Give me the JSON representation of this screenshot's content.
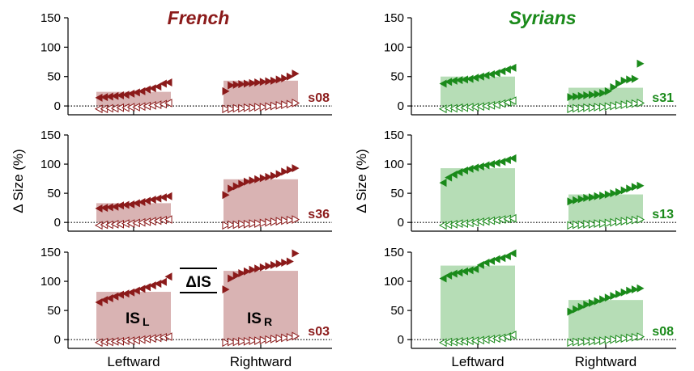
{
  "colors": {
    "french": "#8b1a1a",
    "french_bar": "#d9b3b3",
    "syrian": "#1a8a1a",
    "syrian_bar": "#b6ddb6",
    "axis": "#000000"
  },
  "chart_data": {
    "type": "bar",
    "ylabel": "Δ Size (%)",
    "yticks": [
      0,
      50,
      100,
      150
    ],
    "ylim": [
      -15,
      150
    ],
    "categories": [
      "Leftward",
      "Rightward"
    ],
    "zero_line": "dotted",
    "grid": false,
    "annotations": {
      "delta_is": "ΔIS",
      "is_l": "IS",
      "is_l_sub": "L",
      "is_r": "IS",
      "is_r_sub": "R"
    },
    "groups": [
      {
        "title": "French",
        "color": "#8b1a1a",
        "panels": [
          {
            "subject": "s08",
            "bars": [
              24,
              43
            ],
            "series": [
              {
                "direction": "left",
                "values": [
                  14,
                  15,
                  16,
                  17,
                  18,
                  19,
                  21,
                  23,
                  25,
                  28,
                  30,
                  33,
                  38,
                  40
                ]
              },
              {
                "direction": "right",
                "values": [
                  25,
                  35,
                  36,
                  37,
                  38,
                  39,
                  40,
                  41,
                  42,
                  43,
                  45,
                  47,
                  50,
                  55
                ]
              }
            ],
            "baseline": [
              {
                "direction": "left",
                "values": [
                  -5,
                  -5,
                  -4,
                  -4,
                  -3,
                  -3,
                  -2,
                  -2,
                  -1,
                  0,
                  1,
                  2,
                  3,
                  5
                ]
              },
              {
                "direction": "right",
                "values": [
                  -5,
                  -5,
                  -4,
                  -4,
                  -3,
                  -3,
                  -2,
                  -2,
                  -1,
                  0,
                  1,
                  2,
                  3,
                  5
                ]
              }
            ]
          },
          {
            "subject": "s36",
            "bars": [
              33,
              74
            ],
            "series": [
              {
                "direction": "left",
                "values": [
                  24,
                  25,
                  26,
                  27,
                  29,
                  30,
                  31,
                  33,
                  35,
                  37,
                  39,
                  41,
                  43,
                  45
                ]
              },
              {
                "direction": "right",
                "values": [
                  47,
                  58,
                  62,
                  66,
                  70,
                  72,
                  74,
                  76,
                  78,
                  80,
                  83,
                  87,
                  90,
                  93
                ]
              }
            ],
            "baseline": [
              {
                "direction": "left",
                "values": [
                  -5,
                  -4,
                  -4,
                  -3,
                  -3,
                  -2,
                  -2,
                  -1,
                  0,
                  1,
                  2,
                  3,
                  4,
                  5
                ]
              },
              {
                "direction": "right",
                "values": [
                  -5,
                  -4,
                  -4,
                  -3,
                  -3,
                  -2,
                  -2,
                  -1,
                  0,
                  1,
                  2,
                  3,
                  4,
                  5
                ]
              }
            ]
          },
          {
            "subject": "s03",
            "bars": [
              82,
              118
            ],
            "series": [
              {
                "direction": "left",
                "values": [
                  64,
                  68,
                  71,
                  74,
                  77,
                  79,
                  81,
                  84,
                  87,
                  90,
                  93,
                  96,
                  99,
                  108
                ]
              },
              {
                "direction": "right",
                "values": [
                  86,
                  105,
                  110,
                  114,
                  117,
                  120,
                  122,
                  124,
                  126,
                  128,
                  130,
                  132,
                  134,
                  148
                ]
              }
            ],
            "baseline": [
              {
                "direction": "left",
                "values": [
                  -5,
                  -4,
                  -4,
                  -3,
                  -3,
                  -2,
                  -2,
                  -1,
                  0,
                  1,
                  2,
                  3,
                  4,
                  5
                ]
              },
              {
                "direction": "right",
                "values": [
                  -5,
                  -4,
                  -4,
                  -3,
                  -3,
                  -2,
                  -2,
                  -1,
                  0,
                  1,
                  2,
                  3,
                  4,
                  6
                ]
              }
            ]
          }
        ]
      },
      {
        "title": "Syrians",
        "color": "#1a8a1a",
        "panels": [
          {
            "subject": "s31",
            "bars": [
              50,
              31
            ],
            "series": [
              {
                "direction": "left",
                "values": [
                  38,
                  41,
                  43,
                  44,
                  45,
                  46,
                  48,
                  50,
                  52,
                  54,
                  56,
                  59,
                  62,
                  65
                ]
              },
              {
                "direction": "right",
                "values": [
                  15,
                  16,
                  17,
                  18,
                  19,
                  20,
                  22,
                  25,
                  32,
                  38,
                  43,
                  45,
                  46,
                  72
                ]
              }
            ],
            "baseline": [
              {
                "direction": "left",
                "values": [
                  -5,
                  -4,
                  -4,
                  -3,
                  -3,
                  -2,
                  -2,
                  -1,
                  0,
                  1,
                  2,
                  4,
                  6,
                  9
                ]
              },
              {
                "direction": "right",
                "values": [
                  -5,
                  -4,
                  -4,
                  -3,
                  -3,
                  -2,
                  -2,
                  -1,
                  0,
                  1,
                  2,
                  3,
                  4,
                  5
                ]
              }
            ]
          },
          {
            "subject": "s13",
            "bars": [
              93,
              48
            ],
            "series": [
              {
                "direction": "left",
                "values": [
                  68,
                  77,
                  82,
                  86,
                  89,
                  92,
                  94,
                  96,
                  98,
                  100,
                  102,
                  104,
                  107,
                  110
                ]
              },
              {
                "direction": "right",
                "values": [
                  36,
                  38,
                  40,
                  42,
                  43,
                  45,
                  46,
                  48,
                  50,
                  52,
                  55,
                  58,
                  61,
                  63
                ]
              }
            ],
            "baseline": [
              {
                "direction": "left",
                "values": [
                  -5,
                  -4,
                  -3,
                  -2,
                  -2,
                  -1,
                  0,
                  1,
                  2,
                  3,
                  4,
                  5,
                  6,
                  7
                ]
              },
              {
                "direction": "right",
                "values": [
                  -5,
                  -4,
                  -4,
                  -3,
                  -3,
                  -2,
                  -2,
                  -1,
                  0,
                  1,
                  2,
                  3,
                  4,
                  5
                ]
              }
            ]
          },
          {
            "subject": "s08",
            "bars": [
              127,
              68
            ],
            "series": [
              {
                "direction": "left",
                "values": [
                  105,
                  110,
                  113,
                  115,
                  117,
                  119,
                  121,
                  128,
                  132,
                  135,
                  138,
                  140,
                  143,
                  148
                ]
              },
              {
                "direction": "right",
                "values": [
                  48,
                  52,
                  56,
                  60,
                  63,
                  66,
                  69,
                  72,
                  75,
                  78,
                  81,
                  84,
                  86,
                  88
                ]
              }
            ],
            "baseline": [
              {
                "direction": "left",
                "values": [
                  -5,
                  -4,
                  -4,
                  -3,
                  -3,
                  -2,
                  -2,
                  -1,
                  0,
                  1,
                  2,
                  3,
                  5,
                  8
                ]
              },
              {
                "direction": "right",
                "values": [
                  -5,
                  -4,
                  -4,
                  -3,
                  -3,
                  -2,
                  -2,
                  -1,
                  0,
                  1,
                  2,
                  3,
                  4,
                  5
                ]
              }
            ]
          }
        ]
      }
    ]
  }
}
